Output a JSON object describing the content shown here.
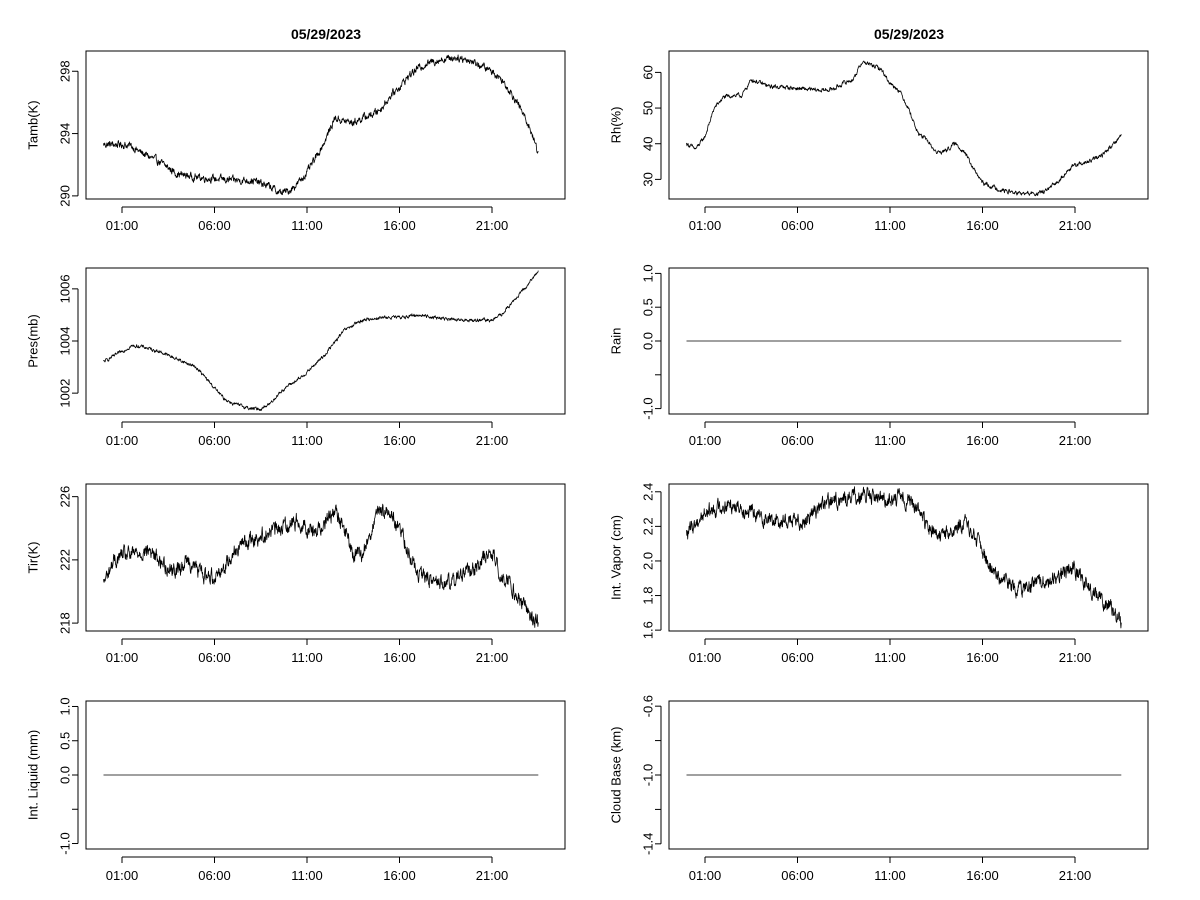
{
  "figure": {
    "left_title": "05/29/2023",
    "right_title": "05/29/2023"
  },
  "chart_data": [
    {
      "type": "line",
      "id": "tamb",
      "ylabel": "Tamb(K)",
      "xlabel": "",
      "x_tick_labels": [
        "01:00",
        "06:00",
        "11:00",
        "16:00",
        "21:00"
      ],
      "x_tick_hours": [
        1,
        6,
        11,
        16,
        21
      ],
      "xlim": [
        0,
        24
      ],
      "y_ticks": [
        290,
        294,
        298
      ],
      "y_tick_labels": [
        "290",
        "294",
        "298"
      ],
      "ylim": [
        289.8,
        299.3
      ],
      "noise": 0.18,
      "series": [
        {
          "name": "Tamb(K)",
          "x": [
            0.0,
            0.5,
            1.0,
            1.5,
            2.0,
            3.0,
            4.0,
            5.0,
            6.0,
            7.0,
            8.0,
            9.0,
            9.5,
            10.0,
            10.5,
            11.0,
            11.5,
            12.0,
            12.5,
            13.0,
            13.5,
            14.0,
            14.5,
            15.0,
            15.5,
            16.0,
            16.5,
            17.0,
            17.5,
            18.0,
            18.5,
            19.0,
            19.5,
            20.0,
            20.5,
            21.0,
            21.5,
            22.0,
            22.5,
            23.0,
            23.5
          ],
          "y": [
            293.3,
            293.3,
            293.3,
            293.2,
            292.8,
            292.2,
            291.4,
            291.2,
            291.1,
            291.0,
            291.0,
            290.6,
            290.2,
            290.3,
            290.8,
            291.5,
            292.5,
            293.6,
            295.0,
            294.8,
            294.7,
            295.0,
            295.2,
            295.6,
            296.4,
            297.0,
            297.7,
            298.2,
            298.5,
            298.7,
            298.8,
            298.9,
            298.8,
            298.6,
            298.3,
            298.0,
            297.5,
            296.7,
            295.7,
            294.5,
            292.8
          ]
        }
      ]
    },
    {
      "type": "line",
      "id": "rh",
      "ylabel": "Rh(%)",
      "xlabel": "",
      "x_tick_labels": [
        "01:00",
        "06:00",
        "11:00",
        "16:00",
        "21:00"
      ],
      "x_tick_hours": [
        1,
        6,
        11,
        16,
        21
      ],
      "xlim": [
        0,
        24
      ],
      "y_ticks": [
        30,
        40,
        50,
        60
      ],
      "y_tick_labels": [
        "30",
        "40",
        "50",
        "60"
      ],
      "ylim": [
        24.5,
        66
      ],
      "noise": 0.45,
      "series": [
        {
          "name": "Rh(%)",
          "x": [
            0.0,
            0.5,
            1.0,
            1.5,
            2.0,
            2.5,
            3.0,
            3.5,
            4.0,
            4.5,
            5.0,
            6.0,
            7.0,
            7.5,
            8.0,
            8.5,
            9.0,
            9.5,
            10.0,
            10.5,
            11.0,
            11.5,
            12.0,
            12.5,
            13.0,
            13.5,
            14.0,
            14.5,
            15.0,
            15.5,
            16.0,
            16.5,
            17.0,
            17.5,
            18.0,
            18.5,
            19.0,
            19.5,
            20.0,
            20.5,
            21.0,
            21.5,
            22.0,
            22.5,
            23.0,
            23.5
          ],
          "y": [
            40.0,
            38.5,
            42.0,
            50.0,
            53.0,
            53.5,
            53.5,
            58.0,
            57.0,
            56.0,
            56.0,
            55.5,
            55.0,
            55.0,
            55.5,
            57.0,
            58.0,
            63.0,
            62.0,
            61.0,
            57.0,
            55.0,
            50.0,
            43.0,
            41.0,
            37.5,
            38.0,
            40.0,
            38.0,
            33.0,
            29.0,
            28.0,
            27.0,
            26.5,
            26.0,
            26.0,
            26.0,
            27.0,
            29.0,
            32.0,
            34.0,
            34.5,
            35.5,
            37.0,
            39.5,
            42.5
          ]
        }
      ]
    },
    {
      "type": "line",
      "id": "pres",
      "ylabel": "Pres(mb)",
      "xlabel": "",
      "x_tick_labels": [
        "01:00",
        "06:00",
        "11:00",
        "16:00",
        "21:00"
      ],
      "x_tick_hours": [
        1,
        6,
        11,
        16,
        21
      ],
      "xlim": [
        0,
        24
      ],
      "y_ticks": [
        1002,
        1004,
        1006
      ],
      "y_tick_labels": [
        "1002",
        "1004",
        "1006"
      ],
      "ylim": [
        1001.2,
        1006.8
      ],
      "noise": 0.05,
      "series": [
        {
          "name": "Pres(mb)",
          "x": [
            0.0,
            0.5,
            1.0,
            1.5,
            2.0,
            3.0,
            4.0,
            5.0,
            5.5,
            6.0,
            6.5,
            7.0,
            7.5,
            8.0,
            8.5,
            9.0,
            9.5,
            10.0,
            10.5,
            11.0,
            12.0,
            13.0,
            14.0,
            15.0,
            16.0,
            17.0,
            18.0,
            19.0,
            20.0,
            21.0,
            21.5,
            22.0,
            22.5,
            23.0,
            23.5
          ],
          "y": [
            1003.2,
            1003.4,
            1003.6,
            1003.8,
            1003.8,
            1003.6,
            1003.3,
            1003.0,
            1002.6,
            1002.2,
            1001.8,
            1001.6,
            1001.5,
            1001.4,
            1001.4,
            1001.6,
            1002.0,
            1002.3,
            1002.5,
            1002.8,
            1003.5,
            1004.4,
            1004.8,
            1004.9,
            1004.9,
            1005.0,
            1004.9,
            1004.8,
            1004.8,
            1004.8,
            1005.0,
            1005.4,
            1005.8,
            1006.2,
            1006.7
          ]
        }
      ]
    },
    {
      "type": "line",
      "id": "rain",
      "ylabel": "Rain",
      "xlabel": "",
      "x_tick_labels": [
        "01:00",
        "06:00",
        "11:00",
        "16:00",
        "21:00"
      ],
      "x_tick_hours": [
        1,
        6,
        11,
        16,
        21
      ],
      "xlim": [
        0,
        24
      ],
      "y_ticks": [
        -1.0,
        -0.5,
        0.0,
        0.5,
        1.0
      ],
      "y_tick_labels": [
        "-1.0",
        "",
        "0.0",
        "0.5",
        "1.0"
      ],
      "ylim": [
        -1.08,
        1.08
      ],
      "noise": 0,
      "series": [
        {
          "name": "Rain",
          "x": [
            0.0,
            23.5
          ],
          "y": [
            0.0,
            0.0
          ]
        }
      ]
    },
    {
      "type": "line",
      "id": "tir",
      "ylabel": "Tir(K)",
      "xlabel": "",
      "x_tick_labels": [
        "01:00",
        "06:00",
        "11:00",
        "16:00",
        "21:00"
      ],
      "x_tick_hours": [
        1,
        6,
        11,
        16,
        21
      ],
      "xlim": [
        0,
        24
      ],
      "y_ticks": [
        218,
        222,
        226
      ],
      "y_tick_labels": [
        "218",
        "222",
        "226"
      ],
      "ylim": [
        217.5,
        226.8
      ],
      "noise": 0.38,
      "series": [
        {
          "name": "Tir(K)",
          "x": [
            0.0,
            0.5,
            1.0,
            1.5,
            2.0,
            2.5,
            3.0,
            3.5,
            4.0,
            4.5,
            5.0,
            5.5,
            6.0,
            6.5,
            7.0,
            7.5,
            8.0,
            8.5,
            9.0,
            9.5,
            10.0,
            10.5,
            11.0,
            11.5,
            12.0,
            12.5,
            13.0,
            13.5,
            14.0,
            14.5,
            15.0,
            15.5,
            16.0,
            16.5,
            17.0,
            17.5,
            18.0,
            18.5,
            19.0,
            19.5,
            20.0,
            20.5,
            21.0,
            21.5,
            22.0,
            22.5,
            23.0,
            23.5
          ],
          "y": [
            220.5,
            221.8,
            222.3,
            222.3,
            222.5,
            222.6,
            222.0,
            221.5,
            221.3,
            222.0,
            221.5,
            221.0,
            221.0,
            221.5,
            222.5,
            223.0,
            223.3,
            223.5,
            223.8,
            224.0,
            224.3,
            224.5,
            224.0,
            223.8,
            224.5,
            225.0,
            224.0,
            222.3,
            222.3,
            224.0,
            225.2,
            225.0,
            224.0,
            222.5,
            221.0,
            220.8,
            220.6,
            220.5,
            220.8,
            221.2,
            221.5,
            222.0,
            222.5,
            221.0,
            220.5,
            219.5,
            218.5,
            218.0
          ]
        }
      ]
    },
    {
      "type": "line",
      "id": "vapor",
      "ylabel": "Int. Vapor (cm)",
      "xlabel": "",
      "x_tick_labels": [
        "01:00",
        "06:00",
        "11:00",
        "16:00",
        "21:00"
      ],
      "x_tick_hours": [
        1,
        6,
        11,
        16,
        21
      ],
      "xlim": [
        0,
        24
      ],
      "y_ticks": [
        1.6,
        1.8,
        2.0,
        2.2,
        2.4
      ],
      "y_tick_labels": [
        "1.6",
        "1.8",
        "2.0",
        "2.2",
        "2.4"
      ],
      "ylim": [
        1.595,
        2.445
      ],
      "noise": 0.035,
      "series": [
        {
          "name": "Int. Vapor (cm)",
          "x": [
            0.0,
            0.5,
            1.0,
            1.5,
            2.0,
            2.5,
            3.0,
            3.5,
            4.0,
            4.5,
            5.0,
            5.5,
            6.0,
            6.5,
            7.0,
            7.5,
            8.0,
            8.5,
            9.0,
            9.5,
            10.0,
            10.5,
            11.0,
            11.5,
            12.0,
            12.5,
            13.0,
            13.5,
            14.0,
            14.5,
            15.0,
            15.5,
            16.0,
            16.5,
            17.0,
            17.5,
            18.0,
            18.5,
            19.0,
            19.5,
            20.0,
            20.5,
            21.0,
            21.5,
            22.0,
            22.5,
            23.0,
            23.5
          ],
          "y": [
            2.15,
            2.22,
            2.28,
            2.3,
            2.32,
            2.33,
            2.31,
            2.28,
            2.25,
            2.24,
            2.23,
            2.24,
            2.22,
            2.25,
            2.3,
            2.33,
            2.35,
            2.36,
            2.37,
            2.38,
            2.37,
            2.37,
            2.36,
            2.36,
            2.35,
            2.3,
            2.2,
            2.15,
            2.15,
            2.18,
            2.22,
            2.15,
            2.05,
            1.95,
            1.88,
            1.85,
            1.84,
            1.85,
            1.87,
            1.89,
            1.9,
            1.95,
            1.95,
            1.88,
            1.82,
            1.77,
            1.72,
            1.65
          ]
        }
      ]
    },
    {
      "type": "line",
      "id": "liquid",
      "ylabel": "Int. Liquid (mm)",
      "xlabel": "",
      "x_tick_labels": [
        "01:00",
        "06:00",
        "11:00",
        "16:00",
        "21:00"
      ],
      "x_tick_hours": [
        1,
        6,
        11,
        16,
        21
      ],
      "xlim": [
        0,
        24
      ],
      "y_ticks": [
        -1.0,
        -0.5,
        0.0,
        0.5,
        1.0
      ],
      "y_tick_labels": [
        "-1.0",
        "",
        "0.0",
        "0.5",
        "1.0"
      ],
      "ylim": [
        -1.08,
        1.08
      ],
      "noise": 0,
      "series": [
        {
          "name": "Int. Liquid (mm)",
          "x": [
            0.0,
            23.5
          ],
          "y": [
            0.0,
            0.0
          ]
        }
      ]
    },
    {
      "type": "line",
      "id": "cloudbase",
      "ylabel": "Cloud Base (km)",
      "xlabel": "",
      "x_tick_labels": [
        "01:00",
        "06:00",
        "11:00",
        "16:00",
        "21:00"
      ],
      "x_tick_hours": [
        1,
        6,
        11,
        16,
        21
      ],
      "xlim": [
        0,
        24
      ],
      "y_ticks": [
        -1.4,
        -1.2,
        -1.0,
        -0.8,
        -0.6
      ],
      "y_tick_labels": [
        "-1.4",
        "",
        "-1.0",
        "",
        "-0.6"
      ],
      "ylim": [
        -1.43,
        -0.57
      ],
      "noise": 0,
      "series": [
        {
          "name": "Cloud Base (km)",
          "x": [
            0.0,
            23.5
          ],
          "y": [
            -1.0,
            -1.0
          ]
        }
      ]
    }
  ]
}
